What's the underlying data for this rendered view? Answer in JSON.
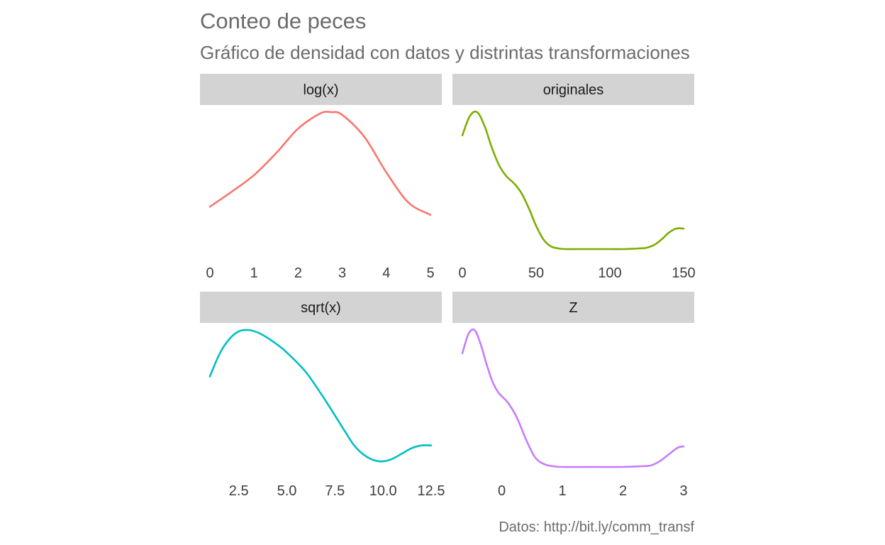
{
  "chart_data": {
    "type": "line",
    "title": "Conteo de peces",
    "subtitle": "Gráfico de densidad con datos y distrintas transformaciones",
    "caption": "Datos: http://bit.ly/comm_transf",
    "facet_layout": "2x2",
    "grid": false,
    "legend": "none",
    "facets": [
      {
        "label": "log(x)",
        "color": "#F8766D",
        "xlim": [
          -0.05,
          5.0
        ],
        "ylim": [
          0,
          1
        ],
        "ticks": [
          0,
          1,
          2,
          3,
          4,
          5
        ],
        "tick_labels": [
          "0",
          "1",
          "2",
          "3",
          "4",
          "5"
        ],
        "x": [
          0.0,
          0.5,
          1.0,
          1.5,
          2.0,
          2.5,
          2.75,
          3.0,
          3.5,
          4.0,
          4.5,
          5.0
        ],
        "y": [
          0.31,
          0.42,
          0.54,
          0.7,
          0.88,
          0.99,
          1.0,
          0.98,
          0.82,
          0.56,
          0.34,
          0.25
        ]
      },
      {
        "label": "originales",
        "color": "#7CAE00",
        "xlim": [
          -2,
          152
        ],
        "ylim": [
          0,
          1
        ],
        "ticks": [
          0,
          50,
          100,
          150
        ],
        "tick_labels": [
          "0",
          "50",
          "100",
          "150"
        ],
        "x": [
          0,
          5,
          10,
          15,
          20,
          25,
          30,
          35,
          40,
          45,
          50,
          55,
          60,
          65,
          70,
          80,
          90,
          100,
          110,
          120,
          125,
          130,
          135,
          140,
          145,
          150
        ],
        "y": [
          0.83,
          0.97,
          1.0,
          0.9,
          0.74,
          0.61,
          0.53,
          0.48,
          0.41,
          0.3,
          0.17,
          0.07,
          0.02,
          0.005,
          0.0,
          0.0,
          0.0,
          0.0,
          0.0,
          0.005,
          0.01,
          0.03,
          0.07,
          0.12,
          0.15,
          0.15
        ]
      },
      {
        "label": "sqrt(x)",
        "color": "#00BFC4",
        "xlim": [
          0.8,
          12.5
        ],
        "ylim": [
          0,
          1
        ],
        "ticks": [
          2.5,
          5.0,
          7.5,
          10.0,
          12.5
        ],
        "tick_labels": [
          "2.5",
          "5.0",
          "7.5",
          "10.0",
          "12.5"
        ],
        "x": [
          1.0,
          1.5,
          2.0,
          2.5,
          3.0,
          3.5,
          4.0,
          4.5,
          5.0,
          6.0,
          7.0,
          8.0,
          8.5,
          9.0,
          9.5,
          10.0,
          10.5,
          11.0,
          11.5,
          12.0,
          12.5
        ],
        "y": [
          0.65,
          0.82,
          0.93,
          0.99,
          1.0,
          0.98,
          0.94,
          0.89,
          0.83,
          0.68,
          0.47,
          0.24,
          0.13,
          0.06,
          0.02,
          0.01,
          0.03,
          0.07,
          0.11,
          0.13,
          0.13
        ]
      },
      {
        "label": "Z",
        "color": "#C77CFF",
        "xlim": [
          -0.65,
          3.0
        ],
        "ylim": [
          0,
          1
        ],
        "ticks": [
          0,
          1,
          2,
          3
        ],
        "tick_labels": [
          "0",
          "1",
          "2",
          "3"
        ],
        "x": [
          -0.65,
          -0.55,
          -0.45,
          -0.35,
          -0.25,
          -0.15,
          -0.05,
          0.1,
          0.25,
          0.4,
          0.55,
          0.7,
          0.85,
          1.0,
          1.5,
          2.0,
          2.3,
          2.45,
          2.6,
          2.75,
          2.9,
          3.0
        ],
        "y": [
          0.83,
          0.97,
          1.0,
          0.9,
          0.75,
          0.62,
          0.54,
          0.47,
          0.36,
          0.2,
          0.07,
          0.02,
          0.005,
          0.0,
          0.0,
          0.0,
          0.005,
          0.01,
          0.04,
          0.09,
          0.14,
          0.15
        ]
      }
    ]
  }
}
